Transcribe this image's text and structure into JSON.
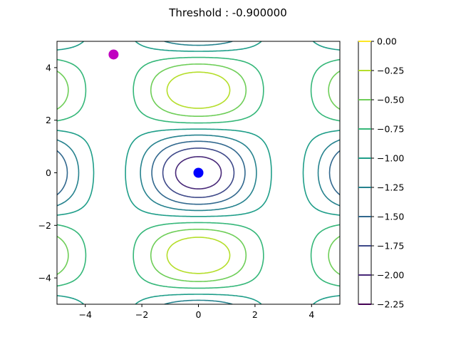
{
  "chart_data": {
    "type": "contour",
    "title": "Threshold : -0.900000",
    "function": "cos(x) + cos(y) + small x/y-dependent term (contour lines of an egg-crate surface)",
    "xlim": [
      -5,
      5
    ],
    "ylim": [
      -5,
      5
    ],
    "x_ticks": [
      -4,
      -2,
      0,
      2,
      4
    ],
    "x_tick_labels": [
      "−4",
      "−2",
      "0",
      "2",
      "4"
    ],
    "y_ticks": [
      -4,
      -2,
      0,
      2,
      4
    ],
    "y_tick_labels": [
      "−4",
      "−2",
      "0",
      "2",
      "4"
    ],
    "contour_levels": [
      0.0,
      -0.25,
      -0.5,
      -0.75,
      -1.0,
      -1.25,
      -1.5,
      -1.75,
      -2.0,
      -2.25
    ],
    "colorbar_tick_labels": [
      "0.00",
      "−0.25",
      "−0.50",
      "−0.75",
      "−1.00",
      "−1.25",
      "−1.50",
      "−1.75",
      "−2.00",
      "−2.25"
    ],
    "level_colors": [
      "#fde725",
      "#b5de2b",
      "#6ece58",
      "#35b779",
      "#1f9e89",
      "#26828e",
      "#31688e",
      "#3e4989",
      "#482878",
      "#440154"
    ],
    "markers": [
      {
        "name": "start point",
        "x": -3.0,
        "y": 4.5,
        "color": "#c000c0"
      },
      {
        "name": "optimum point",
        "x": 0.0,
        "y": 0.0,
        "color": "#0000ff"
      }
    ]
  }
}
